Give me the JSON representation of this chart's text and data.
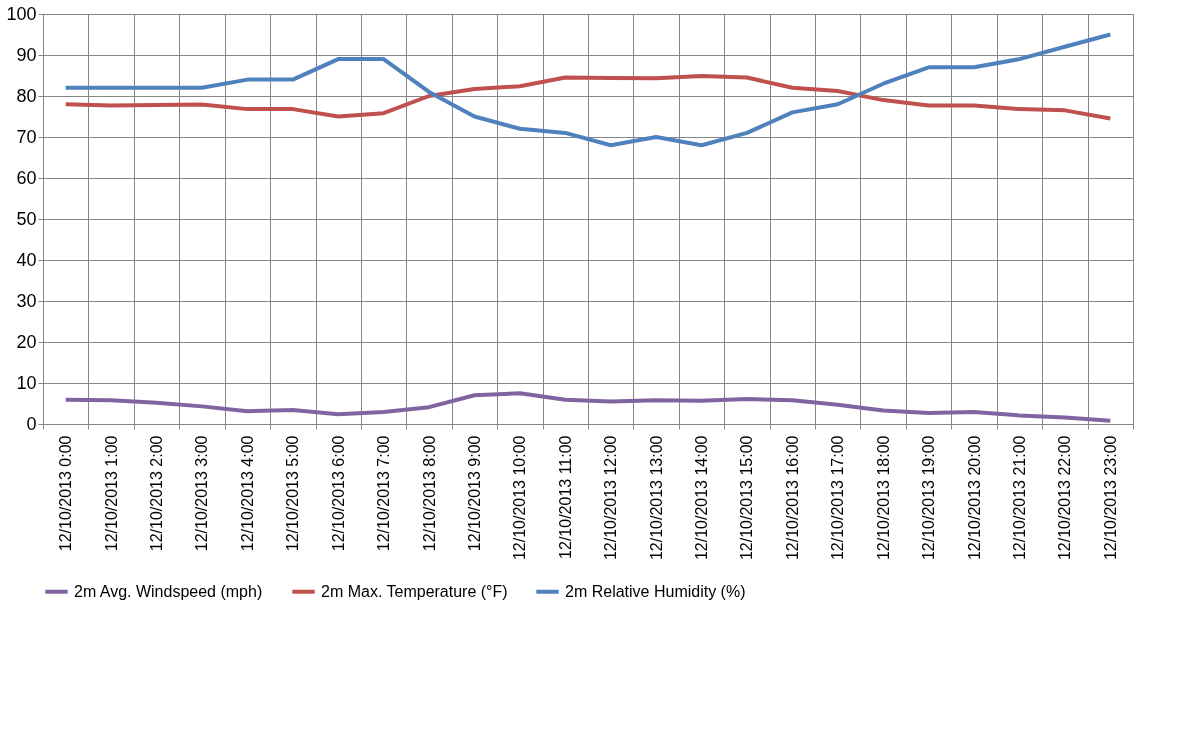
{
  "chart_data": {
    "type": "line",
    "categories": [
      "12/10/2013 0:00",
      "12/10/2013 1:00",
      "12/10/2013 2:00",
      "12/10/2013 3:00",
      "12/10/2013 4:00",
      "12/10/2013 5:00",
      "12/10/2013 6:00",
      "12/10/2013 7:00",
      "12/10/2013 8:00",
      "12/10/2013 9:00",
      "12/10/2013 10:00",
      "12/10/2013 11:00",
      "12/10/2013 12:00",
      "12/10/2013 13:00",
      "12/10/2013 14:00",
      "12/10/2013 15:00",
      "12/10/2013 16:00",
      "12/10/2013 17:00",
      "12/10/2013 18:00",
      "12/10/2013 19:00",
      "12/10/2013 20:00",
      "12/10/2013 21:00",
      "12/10/2013 22:00",
      "12/10/2013 23:00"
    ],
    "series": [
      {
        "name": "2m Avg. Windspeed (mph)",
        "color": "#8064a2",
        "values": [
          5.9,
          5.8,
          5.2,
          4.3,
          3.1,
          3.4,
          2.4,
          2.9,
          4.1,
          7,
          7.5,
          5.9,
          5.5,
          5.8,
          5.7,
          6.1,
          5.8,
          4.7,
          3.3,
          2.7,
          2.9,
          2.1,
          1.6,
          0.8
        ]
      },
      {
        "name": "2m Max. Temperature (°F)",
        "color": "#c0504d",
        "values": [
          78,
          77.7,
          77.8,
          77.9,
          76.8,
          76.8,
          75,
          75.8,
          80,
          81.7,
          82.4,
          84.5,
          84.4,
          84.3,
          84.9,
          84.5,
          82,
          81.2,
          79,
          77.7,
          77.7,
          76.8,
          76.5,
          74.5
        ]
      },
      {
        "name": "2m Relative Humidity (%)",
        "color": "#4f81bd",
        "values": [
          82,
          82,
          82,
          82,
          84,
          84,
          89,
          89,
          81,
          75,
          72,
          71,
          68,
          70,
          68,
          71,
          76,
          78,
          83,
          87,
          87,
          89,
          92,
          95
        ]
      }
    ],
    "ylim": [
      0,
      100
    ],
    "yticks": [
      0,
      10,
      20,
      30,
      40,
      50,
      60,
      70,
      80,
      90,
      100
    ],
    "grid": true,
    "legend": "bottom",
    "marker": "none",
    "line_style": "solid"
  }
}
